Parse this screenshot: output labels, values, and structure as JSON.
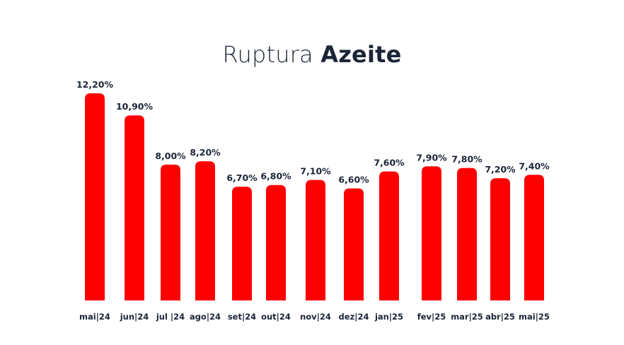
{
  "chart_data": {
    "type": "bar",
    "title_regular": "Ruptura",
    "title_bold": "Azeite",
    "categories": [
      "mai|24",
      "jun|24",
      "jul |24",
      "ago|24",
      "set|24",
      "out|24",
      "nov|24",
      "dez|24",
      "jan|25",
      "fev|25",
      "mar|25",
      "abr|25",
      "mai|25"
    ],
    "values": [
      12.2,
      10.9,
      8.0,
      8.2,
      6.7,
      6.8,
      7.1,
      6.6,
      7.6,
      7.9,
      7.8,
      7.2,
      7.4
    ],
    "data_labels": [
      "12,20%",
      "10,90%",
      "8,00%",
      "8,20%",
      "6,70%",
      "6,80%",
      "7,10%",
      "6,60%",
      "7,60%",
      "7,90%",
      "7,80%",
      "7,20%",
      "7,40%"
    ],
    "unit": "%",
    "ylim": [
      0,
      12.2
    ],
    "grid": false,
    "legend": "none",
    "bar_color": "#ff0000",
    "text_color": "#1b2537"
  }
}
